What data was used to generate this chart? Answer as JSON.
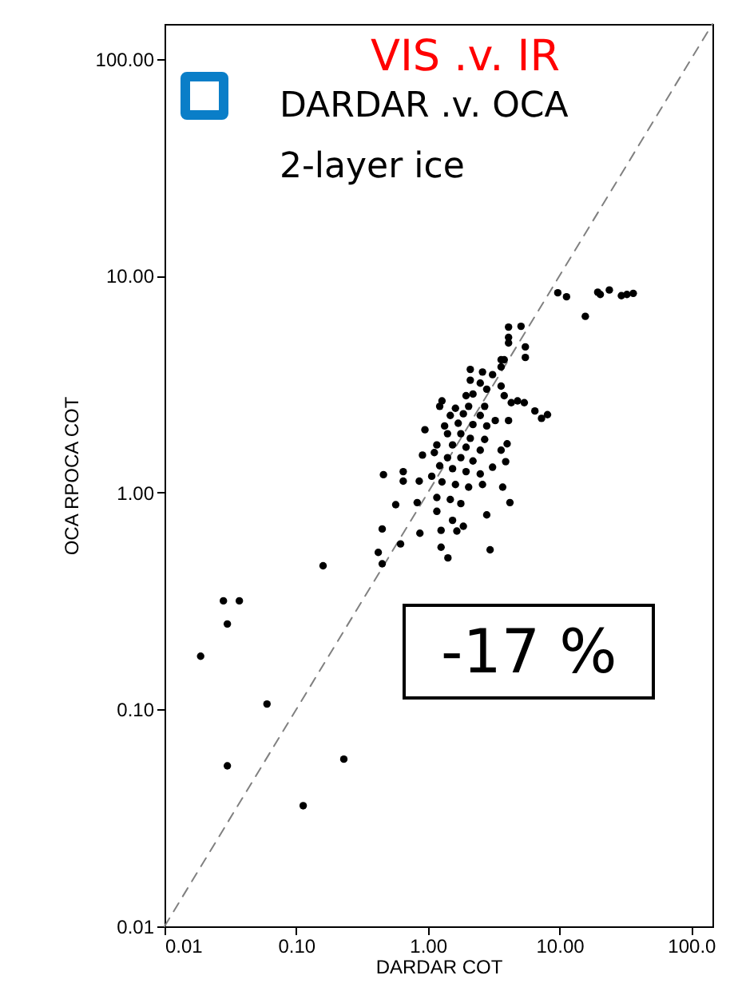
{
  "chart_data": {
    "type": "scatter",
    "xlabel": "DARDAR COT",
    "ylabel": "OCA RPOCA COT",
    "log": "xy",
    "xlim": [
      0.01,
      145
    ],
    "ylim": [
      0.01,
      145
    ],
    "xticks": [
      {
        "value": 0.01,
        "label": "0.01"
      },
      {
        "value": 0.1,
        "label": "0.10"
      },
      {
        "value": 1,
        "label": "1.00"
      },
      {
        "value": 10,
        "label": "10.00"
      },
      {
        "value": 100,
        "label": "100.0"
      }
    ],
    "yticks": [
      {
        "value": 0.01,
        "label": "0.01"
      },
      {
        "value": 0.1,
        "label": "0.10"
      },
      {
        "value": 1,
        "label": "1.00"
      },
      {
        "value": 10,
        "label": "10.00"
      },
      {
        "value": 100,
        "label": "100.00"
      }
    ],
    "grid": false,
    "annotations": [
      "VIS  .v.   IR",
      "DARDAR .v. OCA",
      "2-layer ice",
      "-17 %"
    ],
    "series": [
      {
        "color": "#000000",
        "marker": "circle",
        "x": [
          9.7,
          11.3,
          19.5,
          20.4,
          23.9,
          29.5,
          32.5,
          36.3,
          15.7,
          4.1,
          5.1,
          4.1,
          4.1,
          5.5,
          5.5,
          3.6,
          3.8,
          3.6,
          2.1,
          2.6,
          3.1,
          2.1,
          2.5,
          3.6,
          2.8,
          1.95,
          2.2,
          3.8,
          4.3,
          4.8,
          5.4,
          1.28,
          1.23,
          1.62,
          2.04,
          2.7,
          6.5,
          7.3,
          8.1,
          1.48,
          1.86,
          2.5,
          3.25,
          4.1,
          1.34,
          1.7,
          2.2,
          2.8,
          0.95,
          1.41,
          1.78,
          2.1,
          2.7,
          1.17,
          1.54,
          1.95,
          2.5,
          4.0,
          3.6,
          0.91,
          1.12,
          1.41,
          1.78,
          2.2,
          1.23,
          1.54,
          1.95,
          2.5,
          3.9,
          3.1,
          0.46,
          0.65,
          0.65,
          0.86,
          1.07,
          1.28,
          1.62,
          2.04,
          2.6,
          3.7,
          1.17,
          1.48,
          1.78,
          4.2,
          0.57,
          0.83,
          1.17,
          2.8,
          1.54,
          1.86,
          1.26,
          1.66,
          0.45,
          0.87,
          0.62,
          1.26,
          2.97,
          0.42,
          1.42,
          0.45,
          0.16,
          0.028,
          0.037,
          0.03,
          0.0188,
          0.06,
          0.03,
          0.23,
          0.113
        ],
        "values": [
          8.35,
          8.0,
          8.4,
          8.2,
          8.6,
          8.1,
          8.2,
          8.3,
          6.5,
          5.8,
          5.85,
          5.2,
          4.9,
          4.7,
          4.2,
          4.1,
          4.1,
          3.8,
          3.7,
          3.6,
          3.5,
          3.3,
          3.2,
          3.1,
          3.0,
          2.8,
          2.85,
          2.8,
          2.6,
          2.65,
          2.6,
          2.65,
          2.5,
          2.45,
          2.5,
          2.5,
          2.38,
          2.2,
          2.29,
          2.27,
          2.31,
          2.27,
          2.15,
          2.15,
          2.03,
          2.09,
          2.06,
          2.03,
          1.95,
          1.87,
          1.87,
          1.78,
          1.76,
          1.66,
          1.66,
          1.62,
          1.57,
          1.68,
          1.57,
          1.49,
          1.53,
          1.45,
          1.45,
          1.4,
          1.33,
          1.29,
          1.25,
          1.22,
          1.39,
          1.31,
          1.21,
          1.25,
          1.13,
          1.13,
          1.19,
          1.12,
          1.09,
          1.06,
          1.09,
          1.06,
          0.95,
          0.93,
          0.89,
          0.9,
          0.88,
          0.9,
          0.82,
          0.79,
          0.745,
          0.7,
          0.67,
          0.665,
          0.68,
          0.65,
          0.58,
          0.56,
          0.545,
          0.53,
          0.5,
          0.47,
          0.46,
          0.317,
          0.317,
          0.248,
          0.176,
          0.106,
          0.055,
          0.059,
          0.036
        ]
      },
      {
        "type": "line",
        "color": "#808080",
        "line_style": "dashed",
        "marker": "none",
        "x": [
          0.01,
          145
        ],
        "values": [
          0.01,
          145
        ]
      }
    ]
  }
}
